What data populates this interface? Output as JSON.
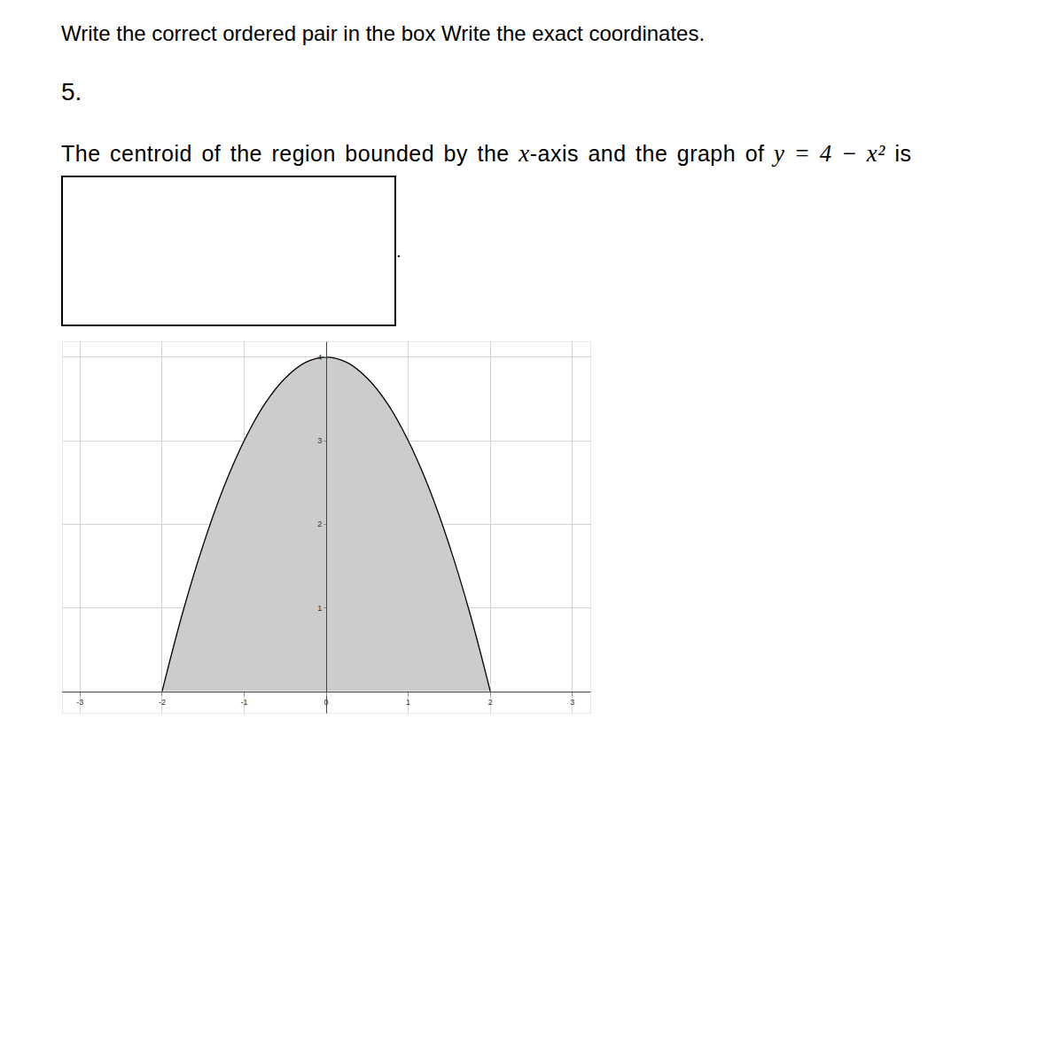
{
  "header": {
    "instruction": "Write the correct ordered pair in the box Write the exact coordinates.",
    "number": "5."
  },
  "question": [
    {
      "text": "The centroid of the region bounded by the "
    },
    {
      "math": "x"
    },
    {
      "text": "-axis and the graph of "
    },
    {
      "math": "y = 4 − x²"
    },
    {
      "text": " is"
    }
  ],
  "answer_box": {
    "suffix": "."
  },
  "chart_data": {
    "type": "area",
    "color": "#cccccc",
    "x": [
      -2,
      -1.75,
      -1.5,
      -1.25,
      -1,
      -0.75,
      -0.5,
      -0.25,
      0,
      0.25,
      0.5,
      0.75,
      1,
      1.25,
      1.5,
      1.75,
      2
    ],
    "values": [
      0,
      0.94,
      1.75,
      2.44,
      3,
      3.44,
      3.75,
      3.94,
      4,
      3.94,
      3.75,
      3.44,
      3,
      2.44,
      1.75,
      0.94,
      0
    ],
    "xlim": [
      -3.22,
      3.23
    ],
    "ylim": [
      -0.27,
      4.19
    ],
    "xticks": [
      -3,
      -2,
      -1,
      0,
      1,
      2,
      3
    ],
    "yticks": [
      1,
      2,
      3,
      4
    ],
    "grid": true
  }
}
